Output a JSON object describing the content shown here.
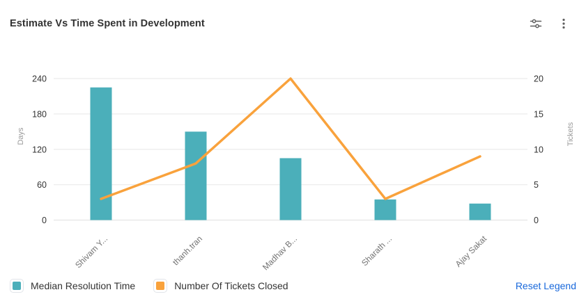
{
  "header": {
    "title": "Estimate Vs Time Spent in Development",
    "icons": [
      "sliders-icon",
      "kebab-menu-icon"
    ]
  },
  "chart_data": {
    "type": "combo (bar + line)",
    "title": "Estimate Vs Time Spent in Development",
    "categories": [
      "Shivam Y...",
      "thanh.tran",
      "Madhav B...",
      "Sharath ...",
      "Ajay Sakat"
    ],
    "series": [
      {
        "name": "Median Resolution Time",
        "type": "bar",
        "axis": "left",
        "color": "#4BAFBA",
        "values": [
          225,
          150,
          105,
          35,
          28
        ]
      },
      {
        "name": "Number Of Tickets Closed",
        "type": "line",
        "axis": "right",
        "color": "#F9A23C",
        "values": [
          3,
          8,
          20,
          3,
          9
        ]
      }
    ],
    "left_axis": {
      "label": "Days",
      "min": 0,
      "max": 240,
      "ticks": [
        0,
        60,
        120,
        180,
        240
      ]
    },
    "right_axis": {
      "label": "Tickets",
      "min": 0,
      "max": 20,
      "ticks": [
        0,
        5,
        10,
        15,
        20
      ]
    },
    "grid": true,
    "legend_position": "bottom-left"
  },
  "legend": {
    "items": [
      {
        "label": "Median Resolution Time",
        "color": "#4BAFBA"
      },
      {
        "label": "Number Of Tickets Closed",
        "color": "#F9A23C"
      }
    ],
    "reset_label": "Reset Legend",
    "reset_color": "#1868DB"
  },
  "colors": {
    "bar": "#4BAFBA",
    "line": "#F9A23C",
    "link": "#1868DB",
    "grid_line": "#ececec",
    "axis_line": "#e4e4e4",
    "tick_text": "#333333",
    "category_text": "#737373",
    "axis_name_text": "#9a9a9a",
    "icon": "#5e5e5e",
    "title_text": "#333333"
  }
}
